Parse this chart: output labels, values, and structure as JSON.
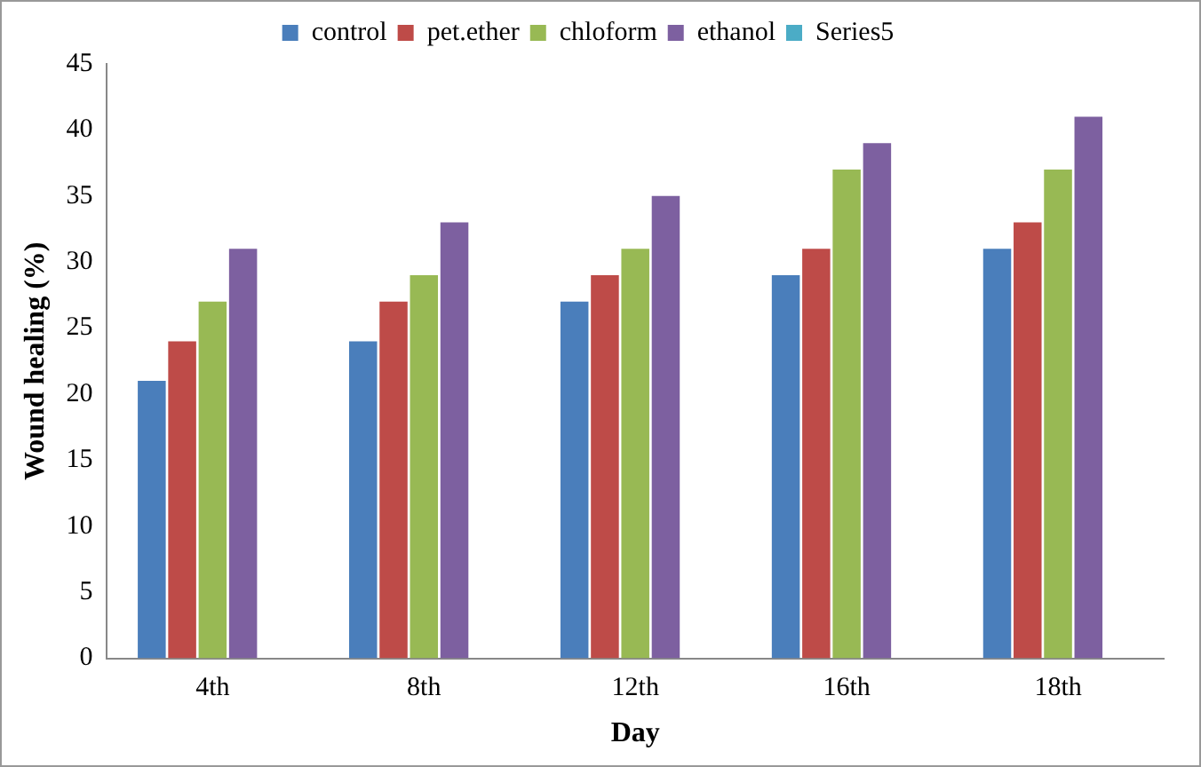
{
  "chart_data": {
    "type": "bar",
    "xlabel": "Day",
    "ylabel": "Wound healing (%)",
    "categories": [
      "4th",
      "8th",
      "12th",
      "16th",
      "18th"
    ],
    "series": [
      {
        "name": "control",
        "color": "#4a7ebb",
        "values": [
          21,
          24,
          27,
          29,
          31
        ]
      },
      {
        "name": "pet.ether",
        "color": "#be4b48",
        "values": [
          24,
          27,
          29,
          31,
          33
        ]
      },
      {
        "name": "chloform",
        "color": "#98b954",
        "values": [
          27,
          29,
          31,
          37,
          37
        ]
      },
      {
        "name": "ethanol",
        "color": "#7d60a0",
        "values": [
          31,
          33,
          35,
          39,
          41
        ]
      },
      {
        "name": "Series5",
        "color": "#4bacc6",
        "values": [
          null,
          null,
          null,
          null,
          null
        ]
      }
    ],
    "ylim": [
      0,
      45
    ],
    "yticks": [
      0,
      5,
      10,
      15,
      20,
      25,
      30,
      35,
      40,
      45
    ],
    "grid": false,
    "legend": "top"
  }
}
